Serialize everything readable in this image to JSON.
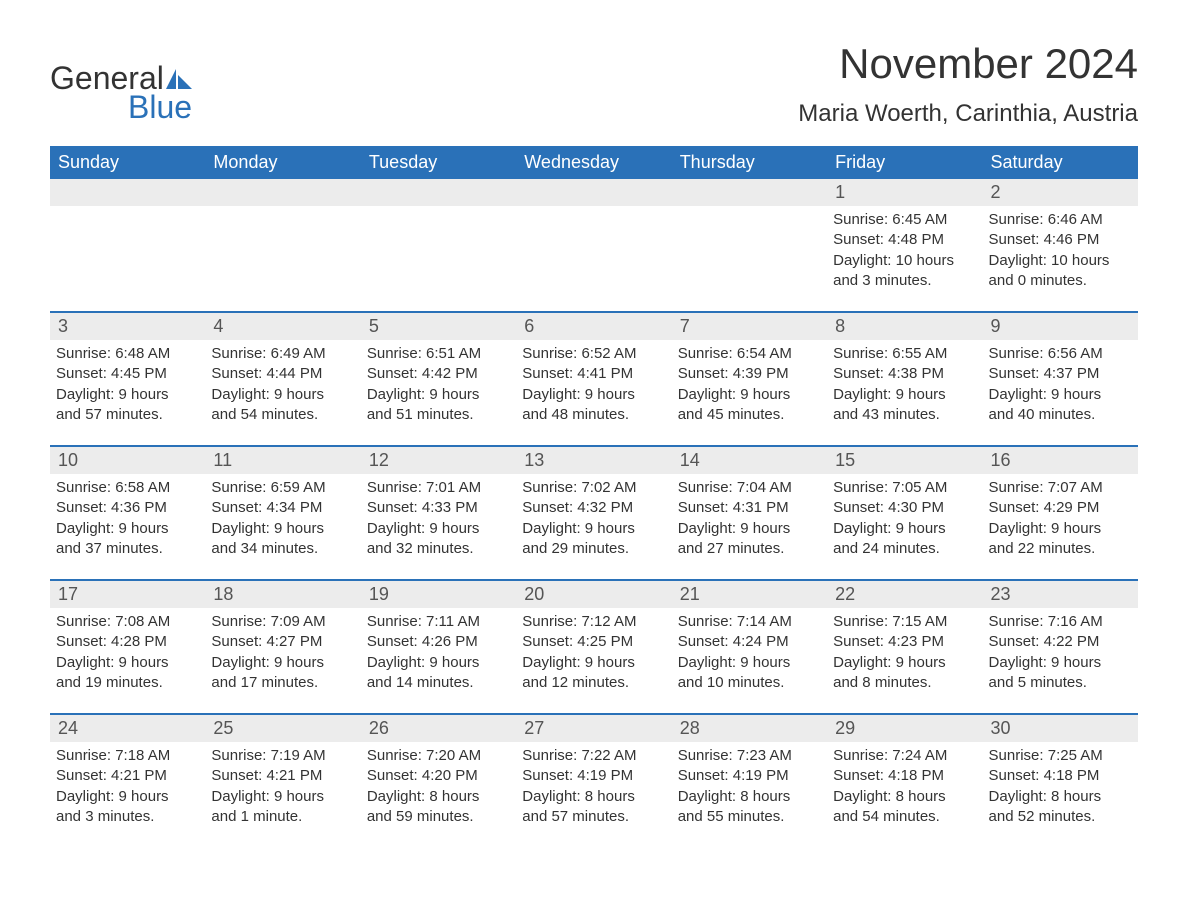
{
  "logo": {
    "text1": "General",
    "text2": "Blue",
    "color_blue": "#2a71b8",
    "color_dark": "#333333"
  },
  "title": "November 2024",
  "location": "Maria Woerth, Carinthia, Austria",
  "colors": {
    "header_bg": "#2a71b8",
    "header_text": "#ffffff",
    "daynum_bg": "#ececec",
    "border": "#2a71b8",
    "text": "#333333"
  },
  "day_names": [
    "Sunday",
    "Monday",
    "Tuesday",
    "Wednesday",
    "Thursday",
    "Friday",
    "Saturday"
  ],
  "weeks": [
    [
      null,
      null,
      null,
      null,
      null,
      {
        "n": "1",
        "sr": "Sunrise: 6:45 AM",
        "ss": "Sunset: 4:48 PM",
        "d1": "Daylight: 10 hours",
        "d2": "and 3 minutes."
      },
      {
        "n": "2",
        "sr": "Sunrise: 6:46 AM",
        "ss": "Sunset: 4:46 PM",
        "d1": "Daylight: 10 hours",
        "d2": "and 0 minutes."
      }
    ],
    [
      {
        "n": "3",
        "sr": "Sunrise: 6:48 AM",
        "ss": "Sunset: 4:45 PM",
        "d1": "Daylight: 9 hours",
        "d2": "and 57 minutes."
      },
      {
        "n": "4",
        "sr": "Sunrise: 6:49 AM",
        "ss": "Sunset: 4:44 PM",
        "d1": "Daylight: 9 hours",
        "d2": "and 54 minutes."
      },
      {
        "n": "5",
        "sr": "Sunrise: 6:51 AM",
        "ss": "Sunset: 4:42 PM",
        "d1": "Daylight: 9 hours",
        "d2": "and 51 minutes."
      },
      {
        "n": "6",
        "sr": "Sunrise: 6:52 AM",
        "ss": "Sunset: 4:41 PM",
        "d1": "Daylight: 9 hours",
        "d2": "and 48 minutes."
      },
      {
        "n": "7",
        "sr": "Sunrise: 6:54 AM",
        "ss": "Sunset: 4:39 PM",
        "d1": "Daylight: 9 hours",
        "d2": "and 45 minutes."
      },
      {
        "n": "8",
        "sr": "Sunrise: 6:55 AM",
        "ss": "Sunset: 4:38 PM",
        "d1": "Daylight: 9 hours",
        "d2": "and 43 minutes."
      },
      {
        "n": "9",
        "sr": "Sunrise: 6:56 AM",
        "ss": "Sunset: 4:37 PM",
        "d1": "Daylight: 9 hours",
        "d2": "and 40 minutes."
      }
    ],
    [
      {
        "n": "10",
        "sr": "Sunrise: 6:58 AM",
        "ss": "Sunset: 4:36 PM",
        "d1": "Daylight: 9 hours",
        "d2": "and 37 minutes."
      },
      {
        "n": "11",
        "sr": "Sunrise: 6:59 AM",
        "ss": "Sunset: 4:34 PM",
        "d1": "Daylight: 9 hours",
        "d2": "and 34 minutes."
      },
      {
        "n": "12",
        "sr": "Sunrise: 7:01 AM",
        "ss": "Sunset: 4:33 PM",
        "d1": "Daylight: 9 hours",
        "d2": "and 32 minutes."
      },
      {
        "n": "13",
        "sr": "Sunrise: 7:02 AM",
        "ss": "Sunset: 4:32 PM",
        "d1": "Daylight: 9 hours",
        "d2": "and 29 minutes."
      },
      {
        "n": "14",
        "sr": "Sunrise: 7:04 AM",
        "ss": "Sunset: 4:31 PM",
        "d1": "Daylight: 9 hours",
        "d2": "and 27 minutes."
      },
      {
        "n": "15",
        "sr": "Sunrise: 7:05 AM",
        "ss": "Sunset: 4:30 PM",
        "d1": "Daylight: 9 hours",
        "d2": "and 24 minutes."
      },
      {
        "n": "16",
        "sr": "Sunrise: 7:07 AM",
        "ss": "Sunset: 4:29 PM",
        "d1": "Daylight: 9 hours",
        "d2": "and 22 minutes."
      }
    ],
    [
      {
        "n": "17",
        "sr": "Sunrise: 7:08 AM",
        "ss": "Sunset: 4:28 PM",
        "d1": "Daylight: 9 hours",
        "d2": "and 19 minutes."
      },
      {
        "n": "18",
        "sr": "Sunrise: 7:09 AM",
        "ss": "Sunset: 4:27 PM",
        "d1": "Daylight: 9 hours",
        "d2": "and 17 minutes."
      },
      {
        "n": "19",
        "sr": "Sunrise: 7:11 AM",
        "ss": "Sunset: 4:26 PM",
        "d1": "Daylight: 9 hours",
        "d2": "and 14 minutes."
      },
      {
        "n": "20",
        "sr": "Sunrise: 7:12 AM",
        "ss": "Sunset: 4:25 PM",
        "d1": "Daylight: 9 hours",
        "d2": "and 12 minutes."
      },
      {
        "n": "21",
        "sr": "Sunrise: 7:14 AM",
        "ss": "Sunset: 4:24 PM",
        "d1": "Daylight: 9 hours",
        "d2": "and 10 minutes."
      },
      {
        "n": "22",
        "sr": "Sunrise: 7:15 AM",
        "ss": "Sunset: 4:23 PM",
        "d1": "Daylight: 9 hours",
        "d2": "and 8 minutes."
      },
      {
        "n": "23",
        "sr": "Sunrise: 7:16 AM",
        "ss": "Sunset: 4:22 PM",
        "d1": "Daylight: 9 hours",
        "d2": "and 5 minutes."
      }
    ],
    [
      {
        "n": "24",
        "sr": "Sunrise: 7:18 AM",
        "ss": "Sunset: 4:21 PM",
        "d1": "Daylight: 9 hours",
        "d2": "and 3 minutes."
      },
      {
        "n": "25",
        "sr": "Sunrise: 7:19 AM",
        "ss": "Sunset: 4:21 PM",
        "d1": "Daylight: 9 hours",
        "d2": "and 1 minute."
      },
      {
        "n": "26",
        "sr": "Sunrise: 7:20 AM",
        "ss": "Sunset: 4:20 PM",
        "d1": "Daylight: 8 hours",
        "d2": "and 59 minutes."
      },
      {
        "n": "27",
        "sr": "Sunrise: 7:22 AM",
        "ss": "Sunset: 4:19 PM",
        "d1": "Daylight: 8 hours",
        "d2": "and 57 minutes."
      },
      {
        "n": "28",
        "sr": "Sunrise: 7:23 AM",
        "ss": "Sunset: 4:19 PM",
        "d1": "Daylight: 8 hours",
        "d2": "and 55 minutes."
      },
      {
        "n": "29",
        "sr": "Sunrise: 7:24 AM",
        "ss": "Sunset: 4:18 PM",
        "d1": "Daylight: 8 hours",
        "d2": "and 54 minutes."
      },
      {
        "n": "30",
        "sr": "Sunrise: 7:25 AM",
        "ss": "Sunset: 4:18 PM",
        "d1": "Daylight: 8 hours",
        "d2": "and 52 minutes."
      }
    ]
  ]
}
